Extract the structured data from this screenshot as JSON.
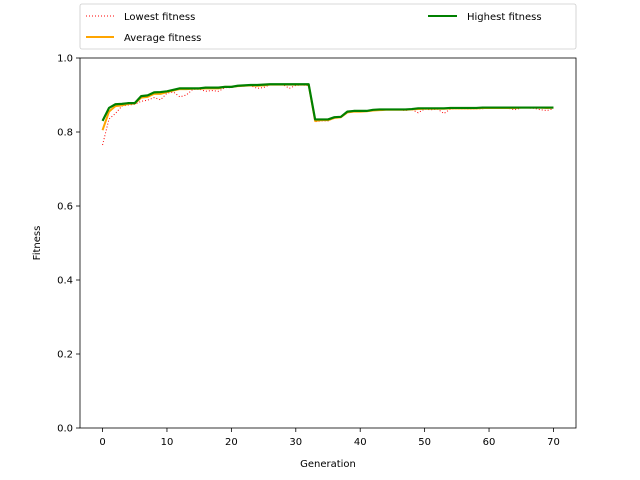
{
  "chart_data": {
    "type": "line",
    "xlabel": "Generation",
    "ylabel": "Fitness",
    "xlim": [
      -3.5,
      73.5
    ],
    "ylim": [
      0.0,
      1.0
    ],
    "xticks": [
      0,
      10,
      20,
      30,
      40,
      50,
      60,
      70
    ],
    "yticks": [
      0.0,
      0.2,
      0.4,
      0.6,
      0.8,
      1.0
    ],
    "xtick_labels": [
      "0",
      "10",
      "20",
      "30",
      "40",
      "50",
      "60",
      "70"
    ],
    "ytick_labels": [
      "0.0",
      "0.2",
      "0.4",
      "0.6",
      "0.8",
      "1.0"
    ],
    "grid": false,
    "legend_placement": "top, above plot, two columns",
    "x": [
      0,
      1,
      2,
      3,
      4,
      5,
      6,
      7,
      8,
      9,
      10,
      11,
      12,
      13,
      14,
      15,
      16,
      17,
      18,
      19,
      20,
      21,
      22,
      23,
      24,
      25,
      26,
      27,
      28,
      29,
      30,
      31,
      32,
      33,
      34,
      35,
      36,
      37,
      38,
      39,
      40,
      41,
      42,
      43,
      44,
      45,
      46,
      47,
      48,
      49,
      50,
      51,
      52,
      53,
      54,
      55,
      56,
      57,
      58,
      59,
      60,
      61,
      62,
      63,
      64,
      65,
      66,
      67,
      68,
      69,
      70
    ],
    "series": [
      {
        "name": "Lowest fitness",
        "color": "#ff0000",
        "style": "dotted",
        "values": [
          0.765,
          0.835,
          0.85,
          0.87,
          0.873,
          0.875,
          0.883,
          0.886,
          0.893,
          0.887,
          0.905,
          0.908,
          0.895,
          0.9,
          0.915,
          0.916,
          0.91,
          0.912,
          0.91,
          0.92,
          0.92,
          0.925,
          0.924,
          0.925,
          0.918,
          0.92,
          0.928,
          0.928,
          0.928,
          0.918,
          0.926,
          0.927,
          0.925,
          0.828,
          0.83,
          0.83,
          0.838,
          0.84,
          0.853,
          0.855,
          0.855,
          0.856,
          0.858,
          0.858,
          0.86,
          0.86,
          0.86,
          0.858,
          0.861,
          0.852,
          0.862,
          0.86,
          0.862,
          0.85,
          0.862,
          0.863,
          0.863,
          0.862,
          0.863,
          0.863,
          0.864,
          0.864,
          0.865,
          0.864,
          0.86,
          0.865,
          0.865,
          0.864,
          0.86,
          0.858,
          0.863
        ]
      },
      {
        "name": "Average fitness",
        "color": "#ffa500",
        "style": "solid",
        "values": [
          0.805,
          0.855,
          0.87,
          0.872,
          0.876,
          0.877,
          0.893,
          0.895,
          0.903,
          0.903,
          0.908,
          0.912,
          0.916,
          0.916,
          0.917,
          0.917,
          0.918,
          0.918,
          0.918,
          0.922,
          0.922,
          0.924,
          0.925,
          0.926,
          0.925,
          0.926,
          0.928,
          0.928,
          0.928,
          0.928,
          0.928,
          0.928,
          0.928,
          0.83,
          0.832,
          0.832,
          0.838,
          0.84,
          0.853,
          0.855,
          0.855,
          0.856,
          0.858,
          0.859,
          0.86,
          0.86,
          0.86,
          0.86,
          0.861,
          0.862,
          0.863,
          0.863,
          0.863,
          0.863,
          0.864,
          0.864,
          0.864,
          0.864,
          0.864,
          0.865,
          0.865,
          0.865,
          0.865,
          0.865,
          0.865,
          0.866,
          0.866,
          0.866,
          0.866,
          0.865,
          0.866
        ]
      },
      {
        "name": "Highest fitness",
        "color": "#008000",
        "style": "solid",
        "values": [
          0.83,
          0.865,
          0.875,
          0.876,
          0.878,
          0.878,
          0.897,
          0.899,
          0.907,
          0.908,
          0.91,
          0.914,
          0.918,
          0.918,
          0.918,
          0.918,
          0.92,
          0.92,
          0.92,
          0.922,
          0.922,
          0.925,
          0.926,
          0.927,
          0.927,
          0.928,
          0.929,
          0.929,
          0.929,
          0.929,
          0.929,
          0.929,
          0.929,
          0.834,
          0.834,
          0.834,
          0.84,
          0.841,
          0.855,
          0.857,
          0.857,
          0.857,
          0.86,
          0.861,
          0.861,
          0.861,
          0.861,
          0.861,
          0.862,
          0.864,
          0.864,
          0.864,
          0.864,
          0.864,
          0.865,
          0.865,
          0.865,
          0.865,
          0.865,
          0.866,
          0.866,
          0.866,
          0.866,
          0.866,
          0.866,
          0.866,
          0.866,
          0.866,
          0.866,
          0.866,
          0.866
        ]
      }
    ]
  }
}
